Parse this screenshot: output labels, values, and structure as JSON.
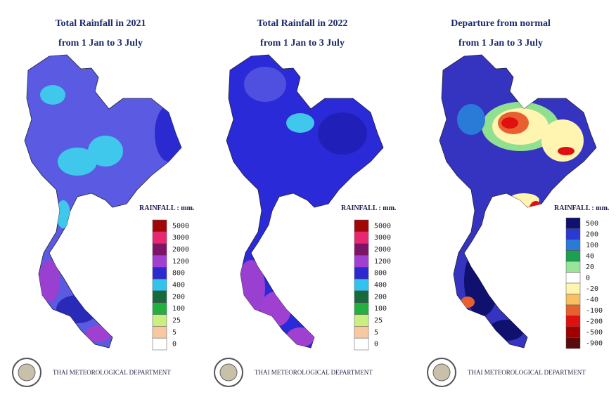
{
  "panels": [
    {
      "title": "Total Rainfall in 2021",
      "subtitle": "from 1 Jan to 3 July",
      "legend": {
        "title": "RAINFALL : mm.",
        "items": [
          {
            "label": 5000,
            "color": "#a00808"
          },
          {
            "label": 3000,
            "color": "#e8286e"
          },
          {
            "label": 2000,
            "color": "#7e1468"
          },
          {
            "label": 1200,
            "color": "#a23ed2"
          },
          {
            "label": 800,
            "color": "#2a2ad0"
          },
          {
            "label": 400,
            "color": "#30c4ec"
          },
          {
            "label": 200,
            "color": "#186a3a"
          },
          {
            "label": 100,
            "color": "#22b040"
          },
          {
            "label": 25,
            "color": "#c8f080"
          },
          {
            "label": 5,
            "color": "#f8c8a0"
          },
          {
            "label": 0,
            "color": "#ffffff"
          }
        ]
      },
      "footer": "THAI METEOROLOGICAL DEPARTMENT"
    },
    {
      "title": "Total Rainfall in 2022",
      "subtitle": "from 1 Jan to 3 July",
      "legend": {
        "title": "RAINFALL : mm.",
        "items": [
          {
            "label": 5000,
            "color": "#a00808"
          },
          {
            "label": 3000,
            "color": "#e8286e"
          },
          {
            "label": 2000,
            "color": "#7e1468"
          },
          {
            "label": 1200,
            "color": "#a23ed2"
          },
          {
            "label": 800,
            "color": "#2a2ad0"
          },
          {
            "label": 400,
            "color": "#30c4ec"
          },
          {
            "label": 200,
            "color": "#186a3a"
          },
          {
            "label": 100,
            "color": "#22b040"
          },
          {
            "label": 25,
            "color": "#c8f080"
          },
          {
            "label": 5,
            "color": "#f8c8a0"
          },
          {
            "label": 0,
            "color": "#ffffff"
          }
        ]
      },
      "footer": "THAI METEOROLOGICAL DEPARTMENT"
    },
    {
      "title": "Departure from normal",
      "subtitle": "from 1 Jan to 3 July",
      "legend": {
        "title": "RAINFALL : mm.",
        "items": [
          {
            "label": 500,
            "color": "#10106e"
          },
          {
            "label": 200,
            "color": "#2a3ad0"
          },
          {
            "label": 100,
            "color": "#2a7ad8"
          },
          {
            "label": 40,
            "color": "#1aa050"
          },
          {
            "label": 20,
            "color": "#98e498"
          },
          {
            "label": 0,
            "color": "#ffffff"
          },
          {
            "label": -20,
            "color": "#fff4b0"
          },
          {
            "label": -40,
            "color": "#f8c060"
          },
          {
            "label": -100,
            "color": "#e86030"
          },
          {
            "label": -200,
            "color": "#e01010"
          },
          {
            "label": -500,
            "color": "#a00000"
          },
          {
            "label": -900,
            "color": "#5a0a0a"
          }
        ]
      },
      "footer": "THAI METEOROLOGICAL DEPARTMENT"
    }
  ]
}
